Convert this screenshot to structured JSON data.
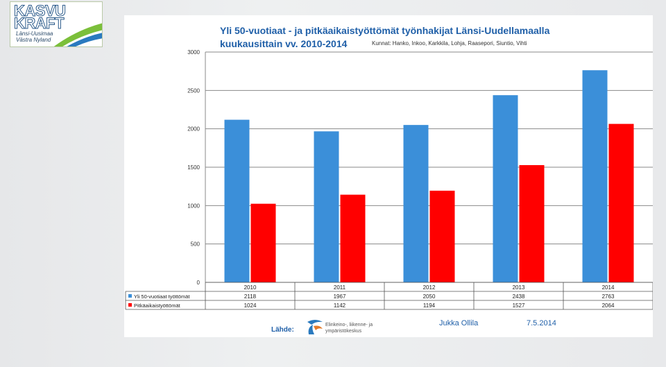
{
  "logo": {
    "line1": "KASVU",
    "line2": "KRAFT",
    "line3": "Länsi-Uusimaa",
    "line4": "Västra Nyland"
  },
  "title_line1": "Yli 50-vuotiaat - ja pitkäaikaistyöttömät työnhakijat  Länsi-Uudellamaalla",
  "title_line2": "kuukausittain vv. 2010-2014",
  "subtitle": "Kunnat: Hanko, Inkoo, Karkkila, Lohja, Raasepori, Siuntio, Vihti",
  "footer": {
    "source_label": "Lähde:",
    "ely_line1": "Elinkeino-, liikenne- ja",
    "ely_line2": "ympäristökeskus",
    "author": "Jukka Ollila",
    "date": "7.5.2014"
  },
  "colors": {
    "series1": "#3b8fd9",
    "series2": "#ff0000",
    "title": "#1f5fa8"
  },
  "chart_data": {
    "type": "bar",
    "categories": [
      "2010",
      "2011",
      "2012",
      "2013",
      "2014"
    ],
    "series": [
      {
        "name": "Yli 50-vuotiaat työttömät",
        "values": [
          2118,
          1967,
          2050,
          2438,
          2763
        ]
      },
      {
        "name": "Pitkäaikaistyöttömät",
        "values": [
          1024,
          1142,
          1194,
          1527,
          2064
        ]
      }
    ],
    "ylim": [
      0,
      3000
    ],
    "yticks": [
      "0",
      "500",
      "1000",
      "1500",
      "2000",
      "2500",
      "3000"
    ],
    "grid": true,
    "data_table": true
  }
}
